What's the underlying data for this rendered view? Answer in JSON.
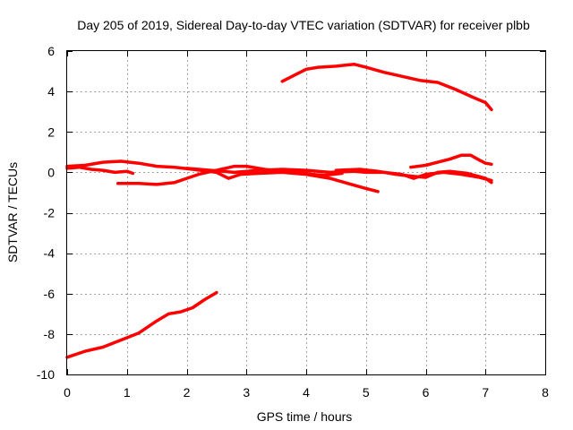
{
  "chart_data": {
    "type": "line",
    "title": "Day 205 of 2019, Sidereal Day-to-day VTEC variation (SDTVAR) for receiver plbb",
    "xlabel": "GPS time / hours",
    "ylabel": "SDTVAR / TECUs",
    "xlim": [
      0,
      8
    ],
    "ylim": [
      -10,
      6
    ],
    "xticks": [
      0,
      1,
      2,
      3,
      4,
      5,
      6,
      7,
      8
    ],
    "yticks": [
      -10,
      -8,
      -6,
      -4,
      -2,
      0,
      2,
      4,
      6
    ],
    "xtick_labels": [
      "0",
      "1",
      "2",
      "3",
      "4",
      "5",
      "6",
      "7",
      "8"
    ],
    "ytick_labels": [
      "-10",
      "-8",
      "-6",
      "-4",
      "-2",
      "0",
      "2",
      "4",
      "6"
    ],
    "grid": true,
    "legend": "none",
    "series_color": "#ff0000",
    "series": [
      {
        "name": "arc-upper",
        "points": [
          [
            3.6,
            4.5
          ],
          [
            3.8,
            4.8
          ],
          [
            4.0,
            5.1
          ],
          [
            4.2,
            5.2
          ],
          [
            4.5,
            5.25
          ],
          [
            4.8,
            5.35
          ],
          [
            5.0,
            5.2
          ],
          [
            5.3,
            4.95
          ],
          [
            5.6,
            4.75
          ],
          [
            5.9,
            4.55
          ],
          [
            6.2,
            4.45
          ],
          [
            6.5,
            4.1
          ],
          [
            6.8,
            3.7
          ],
          [
            7.0,
            3.45
          ],
          [
            7.1,
            3.1
          ]
        ]
      },
      {
        "name": "arc-low",
        "points": [
          [
            0.0,
            -9.15
          ],
          [
            0.3,
            -8.85
          ],
          [
            0.6,
            -8.65
          ],
          [
            0.9,
            -8.3
          ],
          [
            1.2,
            -7.95
          ],
          [
            1.5,
            -7.35
          ],
          [
            1.7,
            -7.0
          ],
          [
            1.9,
            -6.9
          ],
          [
            2.1,
            -6.7
          ],
          [
            2.3,
            -6.3
          ],
          [
            2.5,
            -5.95
          ]
        ]
      },
      {
        "name": "arc-a",
        "points": [
          [
            0.0,
            0.3
          ],
          [
            0.3,
            0.35
          ],
          [
            0.6,
            0.5
          ],
          [
            0.9,
            0.55
          ],
          [
            1.2,
            0.45
          ],
          [
            1.5,
            0.3
          ],
          [
            1.8,
            0.25
          ],
          [
            2.1,
            0.15
          ],
          [
            2.5,
            0.0
          ],
          [
            2.7,
            -0.3
          ],
          [
            2.9,
            -0.1
          ],
          [
            3.2,
            -0.05
          ],
          [
            3.6,
            0.0
          ],
          [
            4.0,
            -0.1
          ],
          [
            4.4,
            -0.3
          ],
          [
            4.7,
            -0.55
          ],
          [
            5.0,
            -0.8
          ],
          [
            5.2,
            -0.95
          ]
        ]
      },
      {
        "name": "arc-b",
        "points": [
          [
            0.0,
            0.2
          ],
          [
            0.2,
            0.25
          ],
          [
            0.4,
            0.15
          ],
          [
            0.6,
            0.1
          ],
          [
            0.8,
            0.0
          ],
          [
            1.0,
            0.05
          ],
          [
            1.1,
            -0.05
          ]
        ]
      },
      {
        "name": "arc-c",
        "points": [
          [
            0.85,
            -0.55
          ],
          [
            1.2,
            -0.55
          ],
          [
            1.5,
            -0.6
          ],
          [
            1.8,
            -0.5
          ],
          [
            2.0,
            -0.3
          ],
          [
            2.2,
            -0.1
          ],
          [
            2.5,
            0.1
          ],
          [
            2.8,
            0.3
          ],
          [
            3.0,
            0.3
          ],
          [
            3.3,
            0.15
          ],
          [
            3.6,
            0.05
          ],
          [
            3.9,
            0.0
          ],
          [
            4.1,
            -0.1
          ],
          [
            4.3,
            -0.15
          ],
          [
            4.6,
            -0.05
          ]
        ]
      },
      {
        "name": "arc-d",
        "points": [
          [
            2.0,
            0.2
          ],
          [
            2.4,
            0.1
          ],
          [
            2.8,
            0.0
          ],
          [
            3.2,
            0.1
          ],
          [
            3.6,
            0.15
          ],
          [
            4.0,
            0.1
          ],
          [
            4.4,
            0.0
          ],
          [
            4.8,
            0.05
          ],
          [
            5.0,
            0.0
          ],
          [
            5.3,
            0.0
          ],
          [
            5.6,
            -0.1
          ],
          [
            5.8,
            -0.3
          ],
          [
            6.0,
            -0.1
          ],
          [
            6.3,
            0.0
          ],
          [
            6.6,
            -0.1
          ],
          [
            6.9,
            -0.25
          ],
          [
            7.1,
            -0.4
          ]
        ]
      },
      {
        "name": "arc-e",
        "points": [
          [
            4.5,
            0.1
          ],
          [
            4.9,
            0.15
          ],
          [
            5.2,
            0.05
          ],
          [
            5.5,
            -0.1
          ],
          [
            5.8,
            -0.2
          ],
          [
            6.0,
            -0.25
          ],
          [
            6.2,
            0.0
          ],
          [
            6.4,
            0.05
          ],
          [
            6.7,
            -0.05
          ],
          [
            7.0,
            -0.3
          ],
          [
            7.1,
            -0.5
          ]
        ]
      },
      {
        "name": "arc-f",
        "points": [
          [
            5.75,
            0.25
          ],
          [
            6.0,
            0.35
          ],
          [
            6.2,
            0.5
          ],
          [
            6.4,
            0.65
          ],
          [
            6.6,
            0.85
          ],
          [
            6.75,
            0.85
          ],
          [
            6.9,
            0.6
          ],
          [
            7.0,
            0.45
          ],
          [
            7.1,
            0.4
          ]
        ]
      }
    ]
  }
}
